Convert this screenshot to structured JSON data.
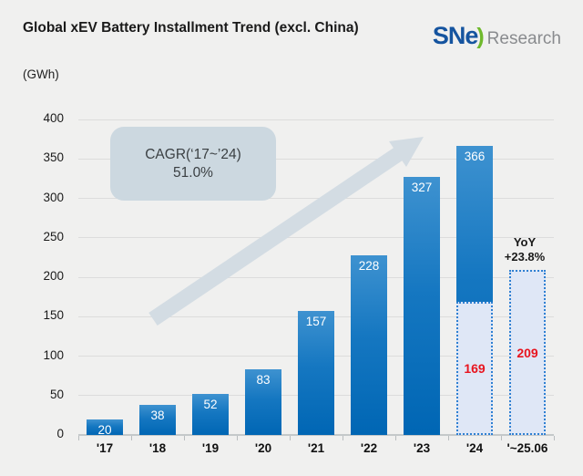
{
  "header": {
    "title": "Global xEV Battery Installment Trend (excl. China)",
    "unit_label": "(GWh)",
    "logo": {
      "sne": "SNe",
      "paren": ")",
      "research": "Research"
    }
  },
  "annotations": {
    "cagr_line1": "CAGR(‘17~’24)",
    "cagr_line2": "51.0%",
    "yoy_line1": "YoY",
    "yoy_line2": "+23.8%"
  },
  "chart_data": {
    "type": "bar",
    "title": "Global xEV Battery Installment Trend (excl. China)",
    "ylabel": "(GWh)",
    "ylim": [
      0,
      400
    ],
    "ytick_step": 50,
    "yticks": [
      0,
      50,
      100,
      150,
      200,
      250,
      300,
      350,
      400
    ],
    "grid": true,
    "legend": "none",
    "categories": [
      "'17",
      "'18",
      "'19",
      "'20",
      "'21",
      "'22",
      "'23",
      "'24",
      "'~25.06"
    ],
    "values": [
      20,
      38,
      52,
      83,
      157,
      228,
      327,
      366,
      209
    ],
    "bars": [
      {
        "label": "'17",
        "value": 20,
        "style": "solid"
      },
      {
        "label": "'18",
        "value": 38,
        "style": "solid"
      },
      {
        "label": "'19",
        "value": 52,
        "style": "solid"
      },
      {
        "label": "'20",
        "value": 83,
        "style": "solid"
      },
      {
        "label": "'21",
        "value": 157,
        "style": "solid"
      },
      {
        "label": "'22",
        "value": 228,
        "style": "solid"
      },
      {
        "label": "'23",
        "value": 327,
        "style": "solid"
      },
      {
        "label": "'24",
        "value": 366,
        "style": "solid",
        "overlay_dashed_to": 169
      },
      {
        "label": "'~25.06",
        "value": 209,
        "style": "dashed"
      }
    ],
    "cagr_annotation": {
      "label": "CAGR(‘17~’24)",
      "value": "51.0%"
    },
    "yoy_annotation": {
      "label": "YoY",
      "value": "+23.8%"
    }
  },
  "colors": {
    "background": "#f0f0ef",
    "bar_gradient_top": "#3e92d0",
    "bar_gradient_bottom": "#0066b4",
    "dashed_fill": "#dfe7f6",
    "dashed_border": "#2f80d2",
    "forecast_value_red": "#e8141e",
    "gridline": "#dcdcdc",
    "axis": "#c4c8ca",
    "cagr_box_bg": "#ccd8e0",
    "arrow": "#d3dce3",
    "logo_blue": "#15549f",
    "logo_green": "#6fb92c",
    "logo_gray": "#898b8e"
  }
}
